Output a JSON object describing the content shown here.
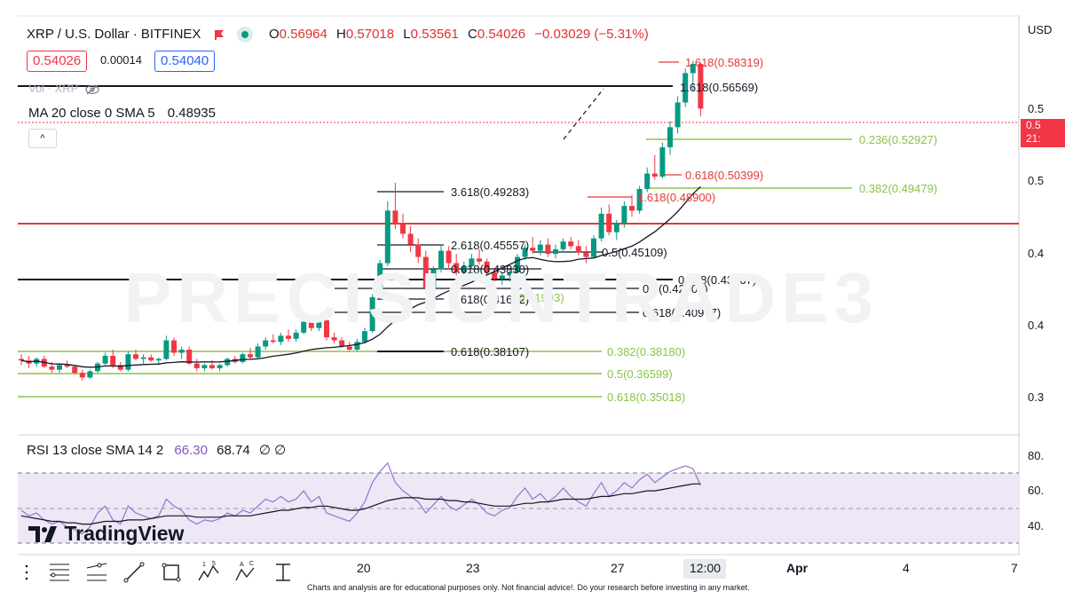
{
  "header": {
    "symbol": "XRP / U.S. Dollar · BITFINEX",
    "open_k": "O",
    "open_v": "0.56964",
    "high_k": "H",
    "high_v": "0.57018",
    "low_k": "L",
    "low_v": "0.53561",
    "close_k": "C",
    "close_v": "0.54026",
    "change": "−0.03029 (−5.31%)",
    "bid": "0.54026",
    "spread": "0.00014",
    "ask": "0.54040",
    "vol_label": "Vol · XRP",
    "ma_label": "MA 20 close 0 SMA 5",
    "ma_value": "0.48935",
    "collapse": "^"
  },
  "currency": "USD",
  "watermark": "PRECISIONTRADE3",
  "logo": "TradingView",
  "disclaimer": "Charts and analysis are for educational purposes only. Not financial advice!. Do your research before investing in any market.",
  "last_price_tag": {
    "line1": "0.5",
    "line2": "21:"
  },
  "colors": {
    "up": "#089981",
    "down": "#f23645",
    "fib_green": "#8bc34a",
    "ma": "#131722",
    "rsi": "#9575cd",
    "rsi_band": "#ede7f6",
    "red_level": "#e53935"
  },
  "rsi": {
    "label": "RSI 13 close SMA 14 2",
    "value1": "66.30",
    "value2": "68.74",
    "tail": "∅ ∅",
    "ticks": [
      "80.",
      "60.",
      "40."
    ]
  },
  "toolbar": [
    "menu-icon",
    "node-line-icon",
    "trend-line-icon",
    "rectangle-icon",
    "elliott-wave-icon",
    "abc-pattern-icon",
    "measure-icon"
  ],
  "chart_data": {
    "type": "candlestick",
    "x_tick_labels": [
      "20",
      "23",
      "27",
      "12:00",
      "Apr",
      "4",
      "7"
    ],
    "y_tick_labels": [
      "0.5",
      "0.5",
      "0.4",
      "0.4",
      "0.3"
    ],
    "ylim": [
      0.33,
      0.6
    ],
    "candles": [
      [
        0.378,
        0.381,
        0.374,
        0.377
      ],
      [
        0.377,
        0.38,
        0.372,
        0.375
      ],
      [
        0.375,
        0.379,
        0.373,
        0.378
      ],
      [
        0.378,
        0.38,
        0.372,
        0.373
      ],
      [
        0.373,
        0.376,
        0.369,
        0.371
      ],
      [
        0.371,
        0.375,
        0.369,
        0.374
      ],
      [
        0.374,
        0.377,
        0.372,
        0.373
      ],
      [
        0.373,
        0.374,
        0.368,
        0.369
      ],
      [
        0.369,
        0.371,
        0.364,
        0.366
      ],
      [
        0.366,
        0.371,
        0.365,
        0.37
      ],
      [
        0.37,
        0.376,
        0.369,
        0.375
      ],
      [
        0.375,
        0.382,
        0.374,
        0.38
      ],
      [
        0.38,
        0.384,
        0.372,
        0.374
      ],
      [
        0.374,
        0.376,
        0.37,
        0.371
      ],
      [
        0.371,
        0.383,
        0.37,
        0.381
      ],
      [
        0.381,
        0.384,
        0.377,
        0.378
      ],
      [
        0.378,
        0.381,
        0.375,
        0.379
      ],
      [
        0.379,
        0.381,
        0.376,
        0.377
      ],
      [
        0.377,
        0.379,
        0.374,
        0.378
      ],
      [
        0.378,
        0.393,
        0.377,
        0.39
      ],
      [
        0.39,
        0.392,
        0.38,
        0.382
      ],
      [
        0.382,
        0.386,
        0.378,
        0.384
      ],
      [
        0.384,
        0.386,
        0.374,
        0.375
      ],
      [
        0.375,
        0.378,
        0.37,
        0.372
      ],
      [
        0.372,
        0.375,
        0.37,
        0.374
      ],
      [
        0.374,
        0.377,
        0.371,
        0.372
      ],
      [
        0.372,
        0.375,
        0.37,
        0.374
      ],
      [
        0.374,
        0.379,
        0.373,
        0.378
      ],
      [
        0.378,
        0.38,
        0.375,
        0.376
      ],
      [
        0.376,
        0.382,
        0.375,
        0.381
      ],
      [
        0.381,
        0.385,
        0.378,
        0.379
      ],
      [
        0.379,
        0.388,
        0.378,
        0.386
      ],
      [
        0.386,
        0.392,
        0.384,
        0.39
      ],
      [
        0.39,
        0.394,
        0.388,
        0.389
      ],
      [
        0.389,
        0.395,
        0.387,
        0.393
      ],
      [
        0.393,
        0.397,
        0.389,
        0.391
      ],
      [
        0.391,
        0.397,
        0.389,
        0.395
      ],
      [
        0.395,
        0.404,
        0.394,
        0.402
      ],
      [
        0.402,
        0.406,
        0.396,
        0.398
      ],
      [
        0.398,
        0.405,
        0.396,
        0.403
      ],
      [
        0.403,
        0.404,
        0.39,
        0.392
      ],
      [
        0.392,
        0.395,
        0.388,
        0.39
      ],
      [
        0.39,
        0.392,
        0.385,
        0.386
      ],
      [
        0.386,
        0.389,
        0.383,
        0.384
      ],
      [
        0.384,
        0.391,
        0.383,
        0.389
      ],
      [
        0.389,
        0.398,
        0.388,
        0.396
      ],
      [
        0.396,
        0.42,
        0.395,
        0.418
      ],
      [
        0.418,
        0.442,
        0.416,
        0.44
      ],
      [
        0.44,
        0.48,
        0.438,
        0.474
      ],
      [
        0.474,
        0.492,
        0.462,
        0.466
      ],
      [
        0.466,
        0.472,
        0.456,
        0.459
      ],
      [
        0.459,
        0.464,
        0.447,
        0.452
      ],
      [
        0.452,
        0.456,
        0.44,
        0.444
      ],
      [
        0.444,
        0.448,
        0.421,
        0.424
      ],
      [
        0.424,
        0.438,
        0.421,
        0.436
      ],
      [
        0.436,
        0.452,
        0.434,
        0.448
      ],
      [
        0.448,
        0.451,
        0.436,
        0.44
      ],
      [
        0.44,
        0.446,
        0.432,
        0.434
      ],
      [
        0.434,
        0.441,
        0.428,
        0.438
      ],
      [
        0.438,
        0.446,
        0.436,
        0.443
      ],
      [
        0.443,
        0.449,
        0.439,
        0.441
      ],
      [
        0.441,
        0.443,
        0.432,
        0.434
      ],
      [
        0.434,
        0.437,
        0.428,
        0.43
      ],
      [
        0.43,
        0.434,
        0.426,
        0.432
      ],
      [
        0.432,
        0.436,
        0.428,
        0.434
      ],
      [
        0.434,
        0.446,
        0.433,
        0.444
      ],
      [
        0.444,
        0.452,
        0.442,
        0.45
      ],
      [
        0.45,
        0.457,
        0.446,
        0.448
      ],
      [
        0.448,
        0.455,
        0.445,
        0.452
      ],
      [
        0.452,
        0.456,
        0.444,
        0.446
      ],
      [
        0.446,
        0.452,
        0.443,
        0.449
      ],
      [
        0.449,
        0.456,
        0.447,
        0.454
      ],
      [
        0.454,
        0.457,
        0.449,
        0.451
      ],
      [
        0.451,
        0.455,
        0.445,
        0.447
      ],
      [
        0.447,
        0.451,
        0.44,
        0.444
      ],
      [
        0.444,
        0.458,
        0.443,
        0.456
      ],
      [
        0.456,
        0.476,
        0.454,
        0.472
      ],
      [
        0.472,
        0.478,
        0.458,
        0.46
      ],
      [
        0.46,
        0.468,
        0.455,
        0.466
      ],
      [
        0.466,
        0.48,
        0.463,
        0.477
      ],
      [
        0.477,
        0.484,
        0.47,
        0.474
      ],
      [
        0.474,
        0.49,
        0.472,
        0.488
      ],
      [
        0.488,
        0.502,
        0.486,
        0.498
      ],
      [
        0.498,
        0.51,
        0.494,
        0.496
      ],
      [
        0.496,
        0.518,
        0.495,
        0.515
      ],
      [
        0.515,
        0.532,
        0.51,
        0.528
      ],
      [
        0.528,
        0.548,
        0.524,
        0.544
      ],
      [
        0.544,
        0.566,
        0.541,
        0.563
      ],
      [
        0.563,
        0.571,
        0.552,
        0.569
      ],
      [
        0.569,
        0.57,
        0.535,
        0.54
      ]
    ],
    "fib_levels": [
      {
        "label": "1.618(0.58319)",
        "color": "#e53935"
      },
      {
        "label": "1.618(0.56569)",
        "color": "#131722"
      },
      {
        "label": "0.236(0.52927)",
        "color": "#8bc34a"
      },
      {
        "label": "0.618(0.50399)",
        "color": "#e53935"
      },
      {
        "label": "0.382(0.49479)",
        "color": "#8bc34a"
      },
      {
        "label": "1.618(0.48900)",
        "color": "#e53935"
      },
      {
        "label": "3.618(0.49283)",
        "color": "#131722"
      },
      {
        "label": "2.618(0.45557)",
        "color": "#131722"
      },
      {
        "label": "0.5(0.45109)",
        "color": "#131722"
      },
      {
        "label": "0.618(0.43830)",
        "color": "#131722"
      },
      {
        "label": "0.618(0.43167)",
        "color": "#131722"
      },
      {
        "label": "0.5(0.42506)",
        "color": "#131722"
      },
      {
        "label": "1.618(0.41632)",
        "color": "#131722"
      },
      {
        "label": "0.618(0.40907)",
        "color": "#131722"
      },
      {
        "label": "0.382(0.38180)",
        "color": "#8bc34a"
      },
      {
        "label": "0.618(0.38107)",
        "color": "#131722"
      },
      {
        "label": "0.5(0.36599)",
        "color": "#8bc34a"
      },
      {
        "label": "0.618(0.35018)",
        "color": "#8bc34a"
      },
      {
        "label": "(0.41993)",
        "color": "#8bc34a"
      }
    ],
    "rsi_values": [
      52,
      48,
      50,
      45,
      42,
      44,
      40,
      38,
      35,
      40,
      50,
      55,
      45,
      42,
      55,
      50,
      48,
      46,
      48,
      60,
      55,
      52,
      45,
      42,
      45,
      44,
      46,
      50,
      48,
      52,
      50,
      55,
      60,
      58,
      62,
      58,
      60,
      66,
      58,
      62,
      50,
      48,
      46,
      44,
      50,
      58,
      72,
      80,
      86,
      72,
      66,
      62,
      58,
      50,
      56,
      62,
      55,
      52,
      56,
      60,
      56,
      50,
      48,
      52,
      54,
      62,
      68,
      60,
      64,
      58,
      62,
      68,
      62,
      58,
      55,
      64,
      72,
      62,
      66,
      72,
      68,
      74,
      78,
      72,
      76,
      80,
      82,
      84,
      82,
      70
    ],
    "rsi_sma_values": [
      48,
      47,
      46,
      45,
      44,
      44,
      43,
      43,
      42,
      42,
      43,
      44,
      44,
      44,
      45,
      45,
      45,
      46,
      47,
      48,
      48,
      48,
      48,
      47,
      47,
      47,
      47,
      48,
      48,
      48,
      48,
      49,
      50,
      51,
      52,
      52,
      53,
      54,
      54,
      55,
      55,
      54,
      53,
      52,
      52,
      53,
      55,
      57,
      59,
      60,
      61,
      61,
      61,
      60,
      60,
      60,
      59,
      59,
      58,
      58,
      57,
      56,
      55,
      55,
      55,
      56,
      57,
      57,
      58,
      58,
      59,
      60,
      60,
      60,
      60,
      61,
      62,
      62,
      63,
      64,
      64,
      65,
      66,
      66,
      67,
      68,
      69,
      70,
      71,
      71
    ]
  }
}
